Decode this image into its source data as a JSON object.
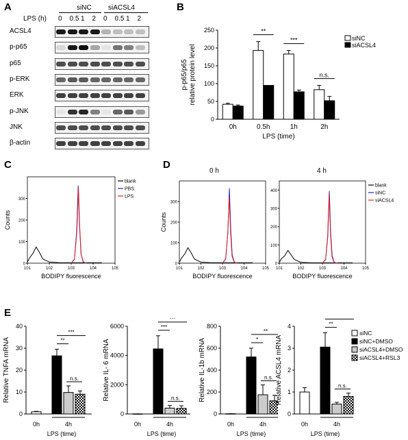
{
  "panels": {
    "A": {
      "label": "A",
      "lps_label": "LPS (h)",
      "group_sinc": "siNC",
      "group_siacsl4": "siACSL4",
      "timepoints": [
        "0",
        "0.5",
        "1",
        "2",
        "0",
        "0.5",
        "1",
        "2"
      ],
      "rows": [
        "ACSL4",
        "p-p65",
        "p65",
        "p-ERK",
        "ERK",
        "p-JNK",
        "JNK",
        "β-actin"
      ],
      "band_intensity": [
        [
          0.9,
          0.9,
          0.9,
          0.9,
          0.3,
          0.25,
          0.25,
          0.25
        ],
        [
          0.15,
          0.9,
          0.95,
          0.35,
          0.1,
          0.55,
          0.5,
          0.25
        ],
        [
          0.7,
          0.7,
          0.7,
          0.7,
          0.7,
          0.7,
          0.7,
          0.7
        ],
        [
          0.6,
          0.65,
          0.65,
          0.6,
          0.6,
          0.6,
          0.6,
          0.6
        ],
        [
          0.75,
          0.75,
          0.75,
          0.75,
          0.75,
          0.75,
          0.75,
          0.75
        ],
        [
          0.1,
          0.8,
          0.85,
          0.5,
          0.1,
          0.6,
          0.65,
          0.4
        ],
        [
          0.7,
          0.7,
          0.7,
          0.7,
          0.7,
          0.7,
          0.7,
          0.7
        ],
        [
          0.75,
          0.75,
          0.75,
          0.75,
          0.75,
          0.75,
          0.75,
          0.75
        ]
      ]
    },
    "B": {
      "label": "B"
    },
    "C": {
      "label": "C",
      "xlabel": "BODIPY fluorescence",
      "ylabel": "Counts",
      "legend": [
        "blank",
        "PBS",
        "LPS"
      ]
    },
    "D": {
      "label": "D",
      "title_left": "0 h",
      "title_right": "4 h",
      "xlabel": "BODIPY fluorescence",
      "ylabel": "Counts",
      "legend": [
        "blank",
        "siNC",
        "siACSL4"
      ]
    },
    "E": {
      "label": "E"
    }
  },
  "colors": {
    "sinc_fill": "#ffffff",
    "siacsl4_fill": "#000000",
    "blank_line": "#000000",
    "pbs_line": "#2222cc",
    "lps_line": "#dd2222",
    "sinc_line": "#2222cc",
    "siacsl4_line": "#dd2222",
    "gray_bar": "#cccccc"
  },
  "chart_data": [
    {
      "type": "bar",
      "panel": "B",
      "ylabel": "p-p65/p65\nrelative protein level",
      "xlabel": "LPS (time)",
      "categories": [
        "0h",
        "0.5h",
        "1h",
        "2h"
      ],
      "ylim": [
        0,
        250
      ],
      "yticks": [
        0,
        50,
        100,
        150,
        200,
        250
      ],
      "series": [
        {
          "name": "siNC",
          "values": [
            42,
            193,
            183,
            83
          ],
          "errors": [
            3,
            25,
            10,
            12
          ]
        },
        {
          "name": "siACSL4",
          "values": [
            37,
            95,
            77,
            52
          ],
          "errors": [
            3,
            0,
            5,
            12
          ]
        }
      ],
      "significance": [
        "**",
        "***",
        "n.s."
      ],
      "legend_position": "top-right"
    },
    {
      "type": "line",
      "panel": "C",
      "xlabel": "BODIPY fluorescence",
      "ylabel": "Counts",
      "ylim": [
        0,
        400
      ],
      "yticks": [
        0,
        100,
        200,
        300
      ],
      "xticks": [
        "10^1",
        "10^2",
        "10^3",
        "10^4",
        "10^5"
      ],
      "series": [
        {
          "name": "blank",
          "x": [
            1.0,
            1.1,
            1.25,
            1.4,
            1.55,
            1.7,
            2.0,
            2.5,
            4.4
          ],
          "y": [
            5,
            25,
            45,
            75,
            50,
            20,
            5,
            2,
            2
          ]
        },
        {
          "name": "PBS",
          "x": [
            3.0,
            3.15,
            3.25,
            3.32,
            3.38,
            3.45,
            3.55,
            3.7
          ],
          "y": [
            0,
            20,
            150,
            360,
            170,
            40,
            5,
            0
          ]
        },
        {
          "name": "LPS",
          "x": [
            3.0,
            3.15,
            3.26,
            3.33,
            3.39,
            3.46,
            3.56,
            3.7
          ],
          "y": [
            0,
            18,
            145,
            350,
            165,
            38,
            5,
            0
          ]
        }
      ]
    },
    {
      "type": "line",
      "panel": "D-0h",
      "title": "0 h",
      "xlabel": "BODIPY fluorescence",
      "ylabel": "Counts",
      "ylim": [
        0,
        400
      ],
      "yticks": [
        0,
        100,
        200,
        300
      ],
      "xticks": [
        "10^1",
        "10^2",
        "10^3",
        "10^4",
        "10^5"
      ],
      "series": [
        {
          "name": "blank",
          "x": [
            1.0,
            1.1,
            1.25,
            1.4,
            1.55,
            1.7,
            2.0,
            2.5,
            4.4
          ],
          "y": [
            5,
            25,
            45,
            75,
            50,
            20,
            5,
            2,
            2
          ]
        },
        {
          "name": "siNC",
          "x": [
            3.0,
            3.15,
            3.25,
            3.32,
            3.38,
            3.45,
            3.55,
            3.7
          ],
          "y": [
            0,
            20,
            150,
            365,
            170,
            40,
            5,
            0
          ]
        },
        {
          "name": "siACSL4",
          "x": [
            3.0,
            3.15,
            3.24,
            3.31,
            3.37,
            3.44,
            3.54,
            3.7
          ],
          "y": [
            0,
            22,
            140,
            320,
            160,
            35,
            5,
            0
          ]
        }
      ]
    },
    {
      "type": "line",
      "panel": "D-4h",
      "title": "4 h",
      "xlabel": "BODIPY fluorescence",
      "ylabel": "Counts",
      "ylim": [
        0,
        450
      ],
      "yticks": [
        0,
        100,
        200,
        300,
        400
      ],
      "xticks": [
        "10^1",
        "10^2",
        "10^3",
        "10^4",
        "10^5"
      ],
      "series": [
        {
          "name": "blank",
          "x": [
            1.0,
            1.1,
            1.25,
            1.4,
            1.55,
            1.7,
            2.0,
            2.5,
            4.4
          ],
          "y": [
            5,
            25,
            40,
            70,
            45,
            20,
            5,
            2,
            2
          ]
        },
        {
          "name": "siNC",
          "x": [
            3.0,
            3.15,
            3.25,
            3.32,
            3.38,
            3.45,
            3.55,
            3.7
          ],
          "y": [
            0,
            20,
            150,
            395,
            170,
            40,
            5,
            0
          ]
        },
        {
          "name": "siACSL4",
          "x": [
            3.0,
            3.15,
            3.24,
            3.31,
            3.37,
            3.44,
            3.54,
            3.7
          ],
          "y": [
            0,
            22,
            150,
            380,
            165,
            35,
            5,
            0
          ]
        }
      ]
    },
    {
      "type": "bar",
      "panel": "E-TNFA",
      "ylabel": "Relative TNFA mRNA",
      "xlabel": "LPS (time)",
      "group_labels": [
        "0h",
        "4h"
      ],
      "ylim": [
        0,
        40
      ],
      "yticks": [
        0,
        10,
        20,
        30,
        40
      ],
      "values": [
        1,
        26.5,
        9.8,
        9
      ],
      "errors": [
        0.2,
        3,
        3,
        1.5
      ],
      "significance": [
        "**",
        "***",
        "n.s."
      ]
    },
    {
      "type": "bar",
      "panel": "E-IL6",
      "ylabel": "Relative IL- 6 mRNA",
      "xlabel": "LPS (time)",
      "group_labels": [
        "0h",
        "4h"
      ],
      "ylim": [
        0,
        6000
      ],
      "yticks": [
        0,
        2000,
        4000,
        6000
      ],
      "values": [
        5,
        4450,
        400,
        380
      ],
      "errors": [
        2,
        900,
        180,
        180
      ],
      "significance": [
        "***",
        "***",
        "n.s."
      ]
    },
    {
      "type": "bar",
      "panel": "E-IL1b",
      "ylabel": "Relative IL-1b mRNA",
      "xlabel": "LPS (time)",
      "group_labels": [
        "0h",
        "4h"
      ],
      "ylim": [
        0,
        800
      ],
      "yticks": [
        0,
        200,
        400,
        600,
        800
      ],
      "values": [
        2,
        520,
        175,
        120
      ],
      "errors": [
        1,
        80,
        90,
        50
      ],
      "significance": [
        "*",
        "**",
        "n.s."
      ]
    },
    {
      "type": "bar",
      "panel": "E-ACSL4",
      "ylabel": "Relative ACSL4 mRNA",
      "xlabel": "LPS (time)",
      "group_labels": [
        "0h",
        "4h"
      ],
      "ylim": [
        0,
        4
      ],
      "yticks": [
        0,
        1,
        2,
        3,
        4
      ],
      "series": [
        {
          "name": "siNC",
          "values": [
            1.0
          ]
        },
        {
          "name": "siNC+DMSO",
          "values": [
            3.05
          ]
        },
        {
          "name": "siACSL4+DMSO",
          "values": [
            0.45
          ]
        },
        {
          "name": "siACSL4+RSL3",
          "values": [
            0.8
          ]
        }
      ],
      "errors": [
        0.2,
        0.65,
        0.08,
        0.15
      ],
      "significance": [
        "**",
        "**",
        "n.s."
      ]
    }
  ]
}
